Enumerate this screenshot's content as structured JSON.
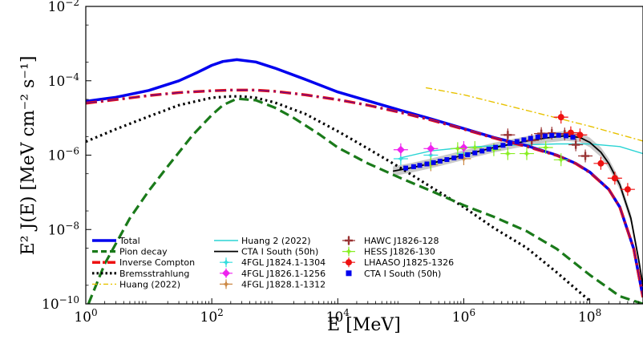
{
  "chart_data": {
    "type": "line",
    "title": "",
    "xlabel": "E [MeV]",
    "ylabel": "E² J(E) [MeV cm⁻² s⁻¹]",
    "x_scale": "log",
    "y_scale": "log",
    "xlim": [
      1,
      700000000
    ],
    "ylim": [
      1e-10,
      0.01
    ],
    "grid": false,
    "legend_placement": "lower-left",
    "x_ticks": [
      {
        "value": 1,
        "mantissa": "10",
        "exp": "0"
      },
      {
        "value": 100,
        "mantissa": "10",
        "exp": "2"
      },
      {
        "value": 10000,
        "mantissa": "10",
        "exp": "4"
      },
      {
        "value": 1000000,
        "mantissa": "10",
        "exp": "6"
      },
      {
        "value": 100000000,
        "mantissa": "10",
        "exp": "8"
      }
    ],
    "y_ticks": [
      {
        "value": 1e-10,
        "mantissa": "10",
        "exp": "−10"
      },
      {
        "value": 1e-08,
        "mantissa": "10",
        "exp": "−8"
      },
      {
        "value": 1e-06,
        "mantissa": "10",
        "exp": "−6"
      },
      {
        "value": 0.0001,
        "mantissa": "10",
        "exp": "−4"
      },
      {
        "value": 0.01,
        "mantissa": "10",
        "exp": "−2"
      }
    ],
    "series": [
      {
        "name": "Total",
        "style": "solid",
        "color": "#0000ee",
        "width": 3.5,
        "x": [
          1,
          3,
          10,
          30,
          60,
          100,
          150,
          250,
          500,
          1000,
          3000,
          10000,
          30000,
          100000,
          300000,
          1000000,
          3000000,
          10000000,
          30000000,
          60000000,
          100000000,
          200000000,
          300000000,
          500000000,
          700000000
        ],
        "y": [
          2.8e-05,
          3.6e-05,
          5.5e-05,
          0.0001,
          0.00017,
          0.00026,
          0.00033,
          0.00037,
          0.00032,
          0.00022,
          0.00011,
          5e-05,
          2.9e-05,
          1.6e-05,
          9.5e-06,
          5.2e-06,
          3e-06,
          1.8e-06,
          1e-06,
          6e-07,
          3.5e-07,
          1.2e-07,
          4e-08,
          3e-09,
          1.5e-10
        ]
      },
      {
        "name": "Pion decay",
        "style": "dashed",
        "color": "#1a7a1a",
        "width": 3.2,
        "x": [
          1.1,
          2,
          5,
          10,
          20,
          50,
          100,
          150,
          250,
          500,
          1000,
          2000,
          5000,
          10000,
          30000,
          100000,
          300000,
          1000000,
          3000000,
          10000000,
          30000000,
          100000000,
          300000000,
          700000000
        ],
        "y": [
          1e-10,
          1.2e-09,
          2e-08,
          1.1e-07,
          5e-07,
          3.5e-06,
          1.2e-05,
          2.2e-05,
          3.3e-05,
          3e-05,
          1.9e-05,
          1e-05,
          3.7e-06,
          1.6e-06,
          6e-07,
          2.4e-07,
          1.1e-07,
          4.5e-08,
          2.2e-08,
          9e-09,
          3e-09,
          6e-10,
          1.6e-10,
          1e-10
        ]
      },
      {
        "name": "Inverse Compton",
        "style": "dashdot",
        "color": "#ee1111",
        "width": 3.5,
        "x": [
          1,
          3,
          10,
          30,
          100,
          200,
          500,
          1000,
          3000,
          10000,
          30000,
          100000,
          300000,
          1000000,
          3000000,
          10000000,
          30000000,
          60000000,
          100000000,
          200000000,
          300000000,
          500000000,
          700000000
        ],
        "y": [
          2.5e-05,
          3.1e-05,
          4e-05,
          4.8e-05,
          5.4e-05,
          5.6e-05,
          5.6e-05,
          5.2e-05,
          4.2e-05,
          3.1e-05,
          2.2e-05,
          1.4e-05,
          8.8e-06,
          5e-06,
          2.9e-06,
          1.7e-06,
          9.8e-07,
          5.9e-07,
          3.4e-07,
          1.2e-07,
          4e-08,
          3e-09,
          1.5e-10
        ]
      },
      {
        "name": "Bremsstrahlung",
        "style": "dotted",
        "color": "#000000",
        "width": 3.2,
        "x": [
          1,
          3,
          10,
          30,
          100,
          200,
          300,
          500,
          1000,
          3000,
          10000,
          30000,
          100000,
          300000,
          1000000,
          3000000,
          10000000,
          30000000,
          100000000
        ],
        "y": [
          2.3e-06,
          5e-06,
          1.1e-05,
          2.2e-05,
          3.5e-05,
          3.8e-05,
          3.8e-05,
          3.5e-05,
          2.6e-05,
          1.3e-05,
          4.4e-06,
          1.5e-06,
          4.5e-07,
          1.4e-07,
          4e-08,
          1.1e-08,
          3.2e-09,
          7e-10,
          1.2e-10
        ]
      },
      {
        "name": "Huang (2022)",
        "style": "dashdot-thin",
        "color": "#e8c200",
        "width": 1.4,
        "x": [
          250000,
          1000000,
          10000000,
          100000000,
          700000000
        ],
        "y": [
          6.5e-05,
          4.2e-05,
          1.6e-05,
          6e-06,
          2.4e-06
        ]
      },
      {
        "name": "Huang 2 (2022)",
        "style": "solid-thin",
        "color": "#2ad4d4",
        "width": 1.4,
        "x": [
          100000,
          300000,
          1000000,
          3000000,
          10000000,
          30000000,
          100000000,
          300000000,
          700000000
        ],
        "y": [
          8.5e-07,
          1.3e-06,
          1.6e-06,
          1.8e-06,
          1.9e-06,
          2e-06,
          2e-06,
          1.7e-06,
          1.1e-06
        ]
      },
      {
        "name": "CTA I South (50h)",
        "style": "solid-black",
        "color": "#000000",
        "width": 1.8,
        "x": [
          75000,
          150000,
          300000,
          600000,
          1000000,
          3000000,
          10000000,
          20000000,
          40000000,
          70000000,
          100000000,
          150000000,
          200000000,
          300000000,
          450000000,
          600000000,
          700000000
        ],
        "y": [
          3.7e-07,
          4.6e-07,
          6e-07,
          8e-07,
          1e-06,
          1.6e-06,
          2.4e-06,
          2.9e-06,
          3.3e-06,
          3e-06,
          2.2e-06,
          1.2e-06,
          6e-07,
          1.6e-07,
          2e-08,
          1.5e-09,
          3e-10
        ]
      }
    ],
    "points": [
      {
        "name": "4FGL J1824.1-1304",
        "color": "#33dddd",
        "marker": "star",
        "x": [
          100000,
          300000,
          1000000
        ],
        "y": [
          8e-07,
          1e-06,
          1.1e-06
        ]
      },
      {
        "name": "4FGL J1826.1-1256",
        "color": "#ee22ee",
        "marker": "diamond",
        "x": [
          100000,
          300000,
          1000000
        ],
        "y": [
          1.4e-06,
          1.5e-06,
          1.6e-06
        ]
      },
      {
        "name": "4FGL J1828.1-1312",
        "color": "#cc8844",
        "marker": "star",
        "x": [
          300000,
          1000000
        ],
        "y": [
          5.5e-07,
          8e-07
        ]
      },
      {
        "name": "HAWC J1826-128",
        "color": "#993333",
        "marker": "plus",
        "x": [
          5000000,
          12000000,
          17000000,
          25000000,
          40000000,
          60000000,
          85000000
        ],
        "y": [
          3.5e-06,
          2.5e-06,
          3.8e-06,
          3.9e-06,
          3.7e-06,
          1.9e-06,
          9.5e-07
        ]
      },
      {
        "name": "HESS J1826-130",
        "color": "#88ee22",
        "marker": "star",
        "x": [
          300000,
          800000,
          1500000,
          3000000,
          5000000,
          10000000,
          20000000,
          35000000
        ],
        "y": [
          6e-07,
          1.5e-06,
          1.6e-06,
          1.4e-06,
          1.1e-06,
          1.1e-06,
          1.6e-06,
          7.5e-07
        ]
      },
      {
        "name": "LHAASO J1825-1326",
        "color": "#ee1111",
        "marker": "circle",
        "x": [
          35000000,
          50000000,
          70000000,
          150000000,
          250000000,
          400000000
        ],
        "y": [
          1.05e-05,
          4e-06,
          3.5e-06,
          6e-07,
          2.4e-07,
          1.2e-07
        ]
      },
      {
        "name": "CTA I South (50h)",
        "color": "#0000ee",
        "marker": "square",
        "x": [
          120000,
          160000,
          200000,
          260000,
          330000,
          420000,
          540000,
          700000,
          900000,
          1150000,
          1500000,
          1950000,
          2500000,
          3200000,
          4200000,
          5400000,
          7000000,
          9000000,
          11500000,
          15000000,
          19500000,
          25000000,
          32000000,
          42000000,
          54000000
        ],
        "y": [
          4.5e-07,
          4.9e-07,
          5.3e-07,
          5.8e-07,
          6.3e-07,
          6.9e-07,
          7.6e-07,
          8.4e-07,
          9.3e-07,
          1.03e-06,
          1.15e-06,
          1.29e-06,
          1.45e-06,
          1.63e-06,
          1.84e-06,
          2.07e-06,
          2.32e-06,
          2.58e-06,
          2.84e-06,
          3.08e-06,
          3.28e-06,
          3.4e-06,
          3.42e-06,
          3.3e-06,
          3.02e-06
        ]
      }
    ],
    "legend": {
      "col1": [
        {
          "label": "Total",
          "key": "line-blue"
        },
        {
          "label": "Pion decay",
          "key": "line-green"
        },
        {
          "label": "Inverse Compton",
          "key": "line-red"
        },
        {
          "label": "Bremsstrahlung",
          "key": "line-black-dotted"
        },
        {
          "label": "Huang (2022)",
          "key": "line-yellow"
        }
      ],
      "col2": [
        {
          "label": "Huang 2 (2022)",
          "key": "line-cyan"
        },
        {
          "label": "CTA I South (50h)",
          "key": "line-black"
        },
        {
          "label": "4FGL J1824.1-1304",
          "key": "pt-cyan"
        },
        {
          "label": "4FGL J1826.1-1256",
          "key": "pt-magenta"
        },
        {
          "label": "4FGL J1828.1-1312",
          "key": "pt-brown"
        }
      ],
      "col3": [
        {
          "label": "HAWC J1826-128",
          "key": "pt-darkred"
        },
        {
          "label": "HESS J1826-130",
          "key": "pt-lime"
        },
        {
          "label": "LHAASO J1825-1326",
          "key": "pt-red"
        },
        {
          "label": "CTA I South (50h)",
          "key": "pt-blue"
        }
      ]
    }
  }
}
